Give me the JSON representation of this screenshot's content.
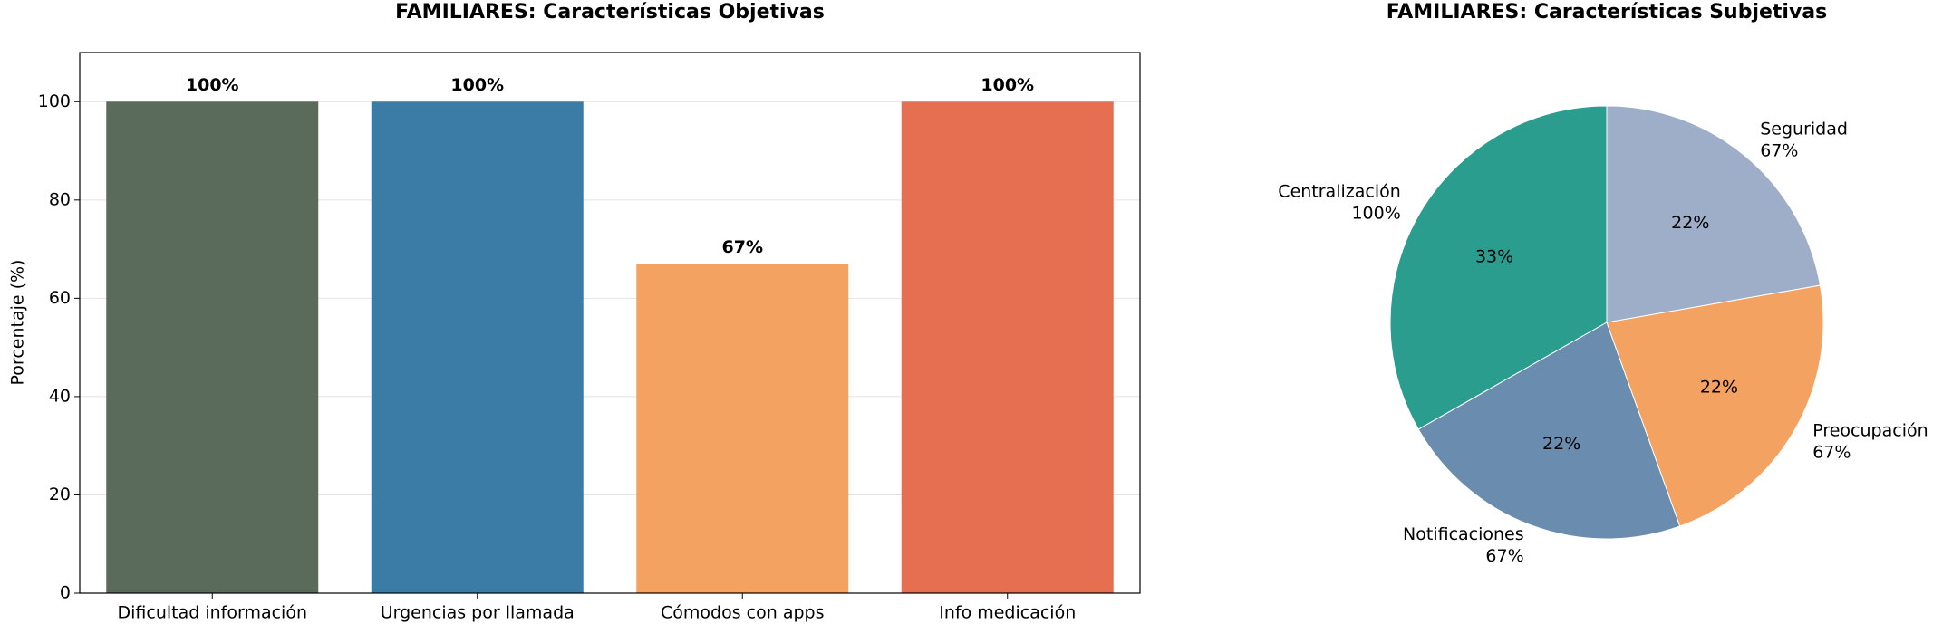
{
  "chart_data": [
    {
      "type": "bar",
      "title": "FAMILIARES: Características Objetivas",
      "ylabel": "Porcentaje (%)",
      "categories": [
        "Dificultad información",
        "Urgencias por llamada",
        "Cómodos con apps",
        "Info medicación"
      ],
      "values": [
        100,
        100,
        67,
        100
      ],
      "value_labels": [
        "100%",
        "100%",
        "67%",
        "100%"
      ],
      "colors": [
        "#5a6b5b",
        "#3a7ca5",
        "#f4a261",
        "#e76f51"
      ],
      "ylim": [
        0,
        110
      ],
      "yticks": [
        0,
        20,
        40,
        60,
        80,
        100
      ],
      "grid": true
    },
    {
      "type": "pie",
      "title": "FAMILIARES: Características Subjetivas",
      "categories": [
        "Centralización",
        "Notificaciones",
        "Preocupación",
        "Seguridad"
      ],
      "values": [
        100,
        67,
        67,
        67
      ],
      "value_labels": [
        "100%",
        "67%",
        "67%",
        "67%"
      ],
      "pct_labels": [
        "33%",
        "22%",
        "22%",
        "22%"
      ],
      "colors": [
        "#2a9d8f",
        "#6a8caf",
        "#f4a261",
        "#9eaec8"
      ]
    }
  ]
}
